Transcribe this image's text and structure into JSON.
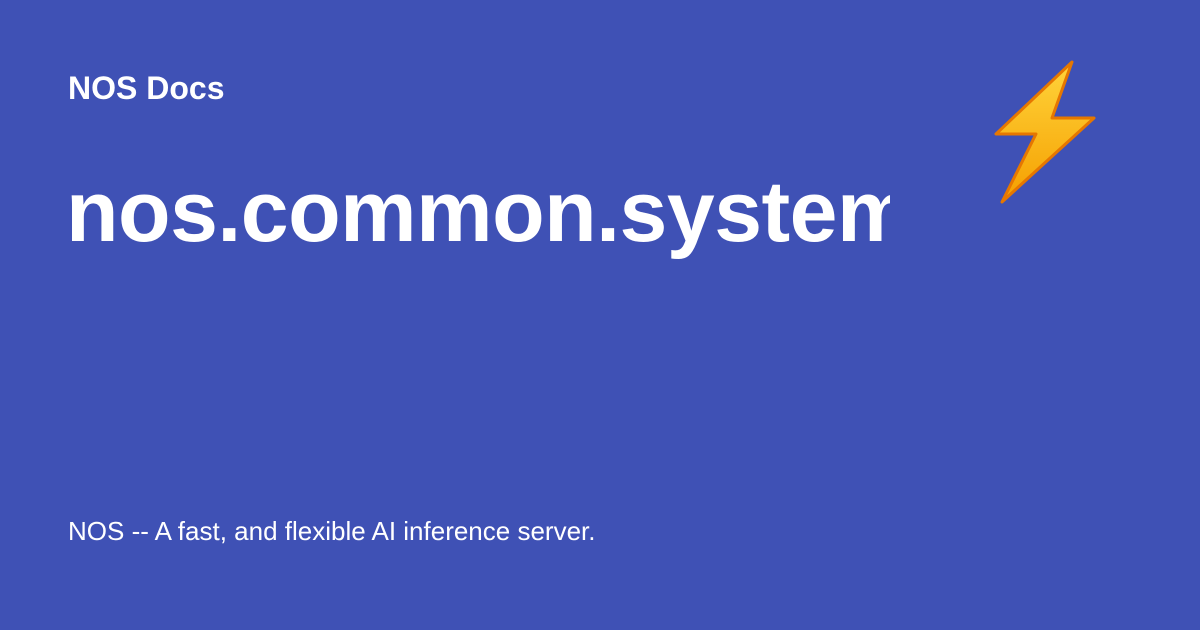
{
  "colors": {
    "background": "#3f51b5",
    "text": "#ffffff",
    "bolt_fill_top": "#ffd43b",
    "bolt_fill_bottom": "#f59f00",
    "bolt_outline": "#e67700"
  },
  "header": {
    "site_name": "NOS Docs",
    "logo_icon": "high-voltage-icon"
  },
  "main": {
    "title": "nos.common.system"
  },
  "footer": {
    "description": "NOS -- A fast, and flexible AI inference server."
  }
}
